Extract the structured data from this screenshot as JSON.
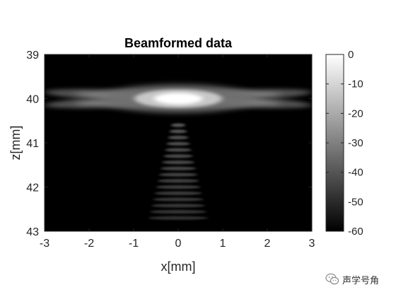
{
  "chart_data": {
    "type": "heatmap",
    "title": "Beamformed data",
    "xlabel": "x[mm]",
    "ylabel": "z[mm]",
    "xlim": [
      -3,
      3
    ],
    "ylim": [
      39,
      43
    ],
    "y_reversed": true,
    "x_ticks": [
      "-3",
      "-2",
      "-1",
      "0",
      "1",
      "2",
      "3"
    ],
    "y_ticks": [
      "39",
      "40",
      "41",
      "42",
      "43"
    ],
    "colormap": "gray",
    "colorbar": {
      "range": [
        -60,
        0
      ],
      "ticks": [
        "0",
        "-10",
        "-20",
        "-30",
        "-40",
        "-50",
        "-60"
      ]
    },
    "features": {
      "focal_point": {
        "x": 0,
        "z": 40,
        "level_db": 0
      },
      "side_lobe_arms": [
        {
          "from": [
            -3,
            40.15
          ],
          "to": [
            3,
            39.85
          ]
        },
        {
          "from": [
            -3,
            39.85
          ],
          "to": [
            3,
            40.15
          ]
        }
      ],
      "tail": {
        "x": 0,
        "z_range": [
          40.6,
          42.7
        ]
      }
    }
  },
  "colors": {
    "background": "#000000",
    "peak": "#ffffff"
  },
  "watermark": {
    "text": "声学号角",
    "icon": "wechat-icon"
  }
}
